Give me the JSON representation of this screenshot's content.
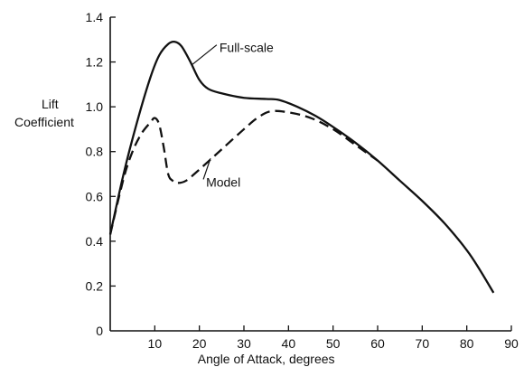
{
  "chart_data": {
    "type": "line",
    "title": "",
    "xlabel": "Angle of Attack, degrees",
    "ylabel_lines": [
      "Lift",
      "Coefficient"
    ],
    "xlim": [
      0,
      90
    ],
    "ylim": [
      0,
      1.4
    ],
    "x_ticks": [
      10,
      20,
      30,
      40,
      50,
      60,
      70,
      80,
      90
    ],
    "y_ticks": [
      0,
      0.2,
      0.4,
      0.6,
      0.8,
      1.0,
      1.2,
      1.4
    ],
    "y_tick_labels": [
      "0",
      "0.2",
      "0.4",
      "0.6",
      "0.8",
      "1.0",
      "1.2",
      "1.4"
    ],
    "grid": false,
    "legend": "none",
    "series": [
      {
        "label": "Full-scale",
        "line_style": "solid",
        "color": "#111111",
        "points": [
          [
            0,
            0.43
          ],
          [
            3,
            0.7
          ],
          [
            6,
            0.93
          ],
          [
            9,
            1.13
          ],
          [
            11,
            1.23
          ],
          [
            13,
            1.28
          ],
          [
            14.5,
            1.29
          ],
          [
            16,
            1.27
          ],
          [
            18,
            1.2
          ],
          [
            20,
            1.12
          ],
          [
            22,
            1.08
          ],
          [
            25,
            1.06
          ],
          [
            30,
            1.04
          ],
          [
            35,
            1.035
          ],
          [
            38,
            1.03
          ],
          [
            42,
            1.0
          ],
          [
            46,
            0.96
          ],
          [
            50,
            0.91
          ],
          [
            55,
            0.84
          ],
          [
            60,
            0.76
          ],
          [
            65,
            0.67
          ],
          [
            70,
            0.58
          ],
          [
            75,
            0.48
          ],
          [
            80,
            0.36
          ],
          [
            83,
            0.27
          ],
          [
            86,
            0.17
          ]
        ],
        "annotation": {
          "text": "Full-scale",
          "point": [
            18.5,
            1.19
          ],
          "label_pos": [
            24.5,
            1.26
          ]
        }
      },
      {
        "label": "Model",
        "line_style": "dashed",
        "color": "#111111",
        "points": [
          [
            0,
            0.43
          ],
          [
            3,
            0.68
          ],
          [
            5,
            0.8
          ],
          [
            7,
            0.88
          ],
          [
            9,
            0.93
          ],
          [
            10,
            0.95
          ],
          [
            11,
            0.92
          ],
          [
            12,
            0.82
          ],
          [
            13,
            0.7
          ],
          [
            14,
            0.67
          ],
          [
            15,
            0.66
          ],
          [
            17,
            0.67
          ],
          [
            20,
            0.72
          ],
          [
            25,
            0.81
          ],
          [
            30,
            0.9
          ],
          [
            33,
            0.95
          ],
          [
            36,
            0.98
          ],
          [
            40,
            0.975
          ],
          [
            45,
            0.95
          ],
          [
            50,
            0.9
          ],
          [
            55,
            0.83
          ],
          [
            60,
            0.76
          ]
        ],
        "annotation": {
          "text": "Model",
          "point": [
            22.5,
            0.77
          ],
          "label_pos": [
            21.5,
            0.66
          ]
        }
      }
    ]
  }
}
